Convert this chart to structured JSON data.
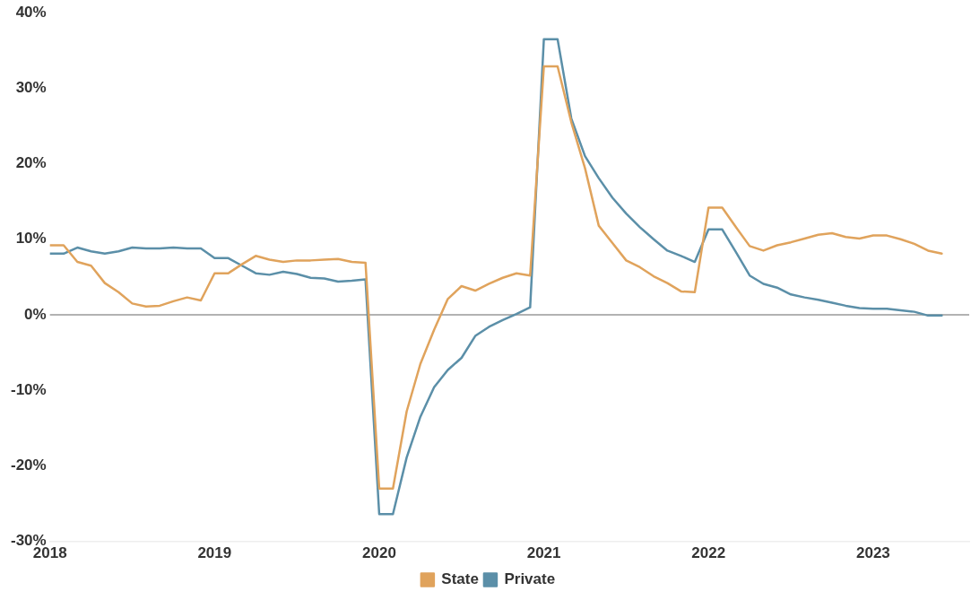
{
  "chart_data": {
    "type": "line",
    "x": [
      "2018-01",
      "2018-02",
      "2018-03",
      "2018-04",
      "2018-05",
      "2018-06",
      "2018-07",
      "2018-08",
      "2018-09",
      "2018-10",
      "2018-11",
      "2018-12",
      "2019-01",
      "2019-02",
      "2019-03",
      "2019-04",
      "2019-05",
      "2019-06",
      "2019-07",
      "2019-08",
      "2019-09",
      "2019-10",
      "2019-11",
      "2019-12",
      "2020-01",
      "2020-02",
      "2020-03",
      "2020-04",
      "2020-05",
      "2020-06",
      "2020-07",
      "2020-08",
      "2020-09",
      "2020-10",
      "2020-11",
      "2020-12",
      "2021-01",
      "2021-02",
      "2021-03",
      "2021-04",
      "2021-05",
      "2021-06",
      "2021-07",
      "2021-08",
      "2021-09",
      "2021-10",
      "2021-11",
      "2021-12",
      "2022-01",
      "2022-02",
      "2022-03",
      "2022-04",
      "2022-05",
      "2022-06",
      "2022-07",
      "2022-08",
      "2022-09",
      "2022-10",
      "2022-11",
      "2022-12",
      "2023-01",
      "2023-02",
      "2023-03",
      "2023-04",
      "2023-05",
      "2023-06"
    ],
    "series": [
      {
        "name": "State",
        "color": "#e0a35c",
        "values": [
          9.2,
          9.2,
          7.0,
          6.5,
          4.2,
          3.0,
          1.5,
          1.1,
          1.2,
          1.8,
          2.3,
          1.9,
          5.5,
          5.5,
          6.7,
          7.8,
          7.3,
          7.0,
          7.2,
          7.2,
          7.3,
          7.4,
          7.0,
          6.9,
          -23.0,
          -23.0,
          -12.8,
          -6.5,
          -2.0,
          2.1,
          3.8,
          3.2,
          4.1,
          4.9,
          5.5,
          5.2,
          32.9,
          32.9,
          25.5,
          19.4,
          11.8,
          9.5,
          7.2,
          6.3,
          5.1,
          4.2,
          3.1,
          3.0,
          14.2,
          14.2,
          11.6,
          9.1,
          8.5,
          9.2,
          9.6,
          10.1,
          10.6,
          10.8,
          10.3,
          10.1,
          10.5,
          10.5,
          10.0,
          9.4,
          8.5,
          8.1
        ]
      },
      {
        "name": "Private",
        "color": "#5b8fa8",
        "values": [
          8.1,
          8.1,
          8.9,
          8.4,
          8.1,
          8.4,
          8.9,
          8.8,
          8.8,
          8.9,
          8.8,
          8.8,
          7.5,
          7.5,
          6.5,
          5.5,
          5.3,
          5.7,
          5.4,
          4.9,
          4.8,
          4.4,
          4.5,
          4.7,
          -26.4,
          -26.4,
          -18.9,
          -13.5,
          -9.6,
          -7.3,
          -5.7,
          -2.8,
          -1.6,
          -0.7,
          0.1,
          1.0,
          36.5,
          36.5,
          26.0,
          21.0,
          18.1,
          15.5,
          13.4,
          11.6,
          10.0,
          8.5,
          7.8,
          7.0,
          11.3,
          11.3,
          8.3,
          5.2,
          4.1,
          3.6,
          2.7,
          2.3,
          2.0,
          1.6,
          1.2,
          0.9,
          0.8,
          0.8,
          0.6,
          0.4,
          -0.1,
          -0.1
        ]
      }
    ],
    "xlim": [
      "2018-01",
      "2023-08"
    ],
    "xticks": [
      "2018",
      "2019",
      "2020",
      "2021",
      "2022",
      "2023"
    ],
    "ylim": [
      -30,
      40
    ],
    "yticks": [
      {
        "value": -30,
        "label": "-30%"
      },
      {
        "value": -20,
        "label": "-20%"
      },
      {
        "value": -10,
        "label": "-10%"
      },
      {
        "value": 0,
        "label": "0%"
      },
      {
        "value": 10,
        "label": "10%"
      },
      {
        "value": 20,
        "label": "20%"
      },
      {
        "value": 30,
        "label": "30%"
      },
      {
        "value": 40,
        "label": "40%"
      }
    ],
    "ref_lines": [
      {
        "axis": "y",
        "value": 0,
        "color": "#999999"
      }
    ],
    "grid": false,
    "legend": "bottom",
    "marker": "none",
    "line_style": "solid"
  }
}
